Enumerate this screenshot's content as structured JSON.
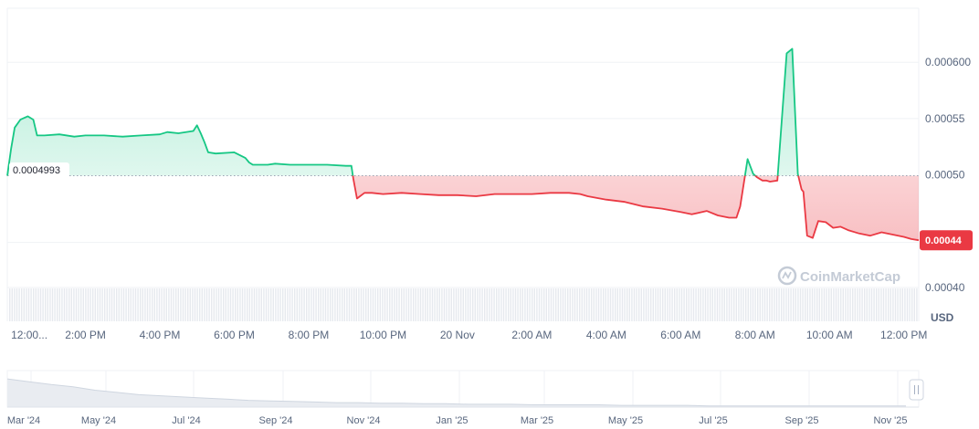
{
  "chart_data": {
    "type": "area",
    "unit_label": "USD",
    "baseline": 0.0004993,
    "baseline_label": "0.0004993",
    "current_label": "0.00044",
    "watermark": "CoinMarketCap",
    "ylim": [
      0.00037,
      0.000648
    ],
    "y_ticks": [
      {
        "value": 0.0006,
        "label": "0.000600"
      },
      {
        "value": 0.00055,
        "label": "0.00055"
      },
      {
        "value": 0.0005,
        "label": "0.00050"
      },
      {
        "value": 0.00044,
        "label": ""
      },
      {
        "value": 0.0004,
        "label": "0.00040"
      }
    ],
    "x_ticks": [
      {
        "t": 0,
        "label": "12:00..."
      },
      {
        "t": 2,
        "label": "2:00 PM"
      },
      {
        "t": 4,
        "label": "4:00 PM"
      },
      {
        "t": 6,
        "label": "6:00 PM"
      },
      {
        "t": 8,
        "label": "8:00 PM"
      },
      {
        "t": 10,
        "label": "10:00 PM"
      },
      {
        "t": 12,
        "label": "20 Nov"
      },
      {
        "t": 14,
        "label": "2:00 AM"
      },
      {
        "t": 16,
        "label": "4:00 AM"
      },
      {
        "t": 18,
        "label": "6:00 AM"
      },
      {
        "t": 20,
        "label": "8:00 AM"
      },
      {
        "t": 22,
        "label": "10:00 AM"
      },
      {
        "t": 24,
        "label": "12:00 PM"
      }
    ],
    "x_range_hours": [
      -0.1,
      24.4
    ],
    "series": [
      {
        "x": [
          -0.1,
          0.0,
          0.1,
          0.25,
          0.45,
          0.6,
          0.7,
          0.9,
          1.3,
          1.7,
          2.0,
          2.5,
          3.0,
          3.5,
          4.0,
          4.2,
          4.5,
          4.9,
          5.0,
          5.1,
          5.2,
          5.3,
          5.5,
          6.0,
          6.3,
          6.4,
          6.5,
          6.9,
          7.1,
          7.5,
          8.0,
          8.5,
          9.0,
          9.15,
          9.2,
          9.3,
          9.5,
          9.7,
          10.0,
          10.5,
          11.0,
          11.5,
          12.0,
          12.5,
          13.0,
          13.5,
          14.0,
          14.5,
          15.0,
          15.3,
          15.5,
          16.0,
          16.5,
          17.0,
          17.5,
          18.0,
          18.3,
          18.7,
          19.0,
          19.3,
          19.5,
          19.6,
          19.8,
          19.95,
          20.05,
          20.2,
          20.3,
          20.4,
          20.6,
          20.85,
          21.0,
          21.15,
          21.25,
          21.3,
          21.4,
          21.55,
          21.7,
          21.9,
          22.1,
          22.3,
          22.5,
          22.8,
          23.1,
          23.4,
          23.7,
          24.0,
          24.2,
          24.4
        ],
        "y": [
          0.0004993,
          0.000523,
          0.000542,
          0.000549,
          0.000552,
          0.000549,
          0.000535,
          0.000535,
          0.000536,
          0.000534,
          0.000535,
          0.000535,
          0.000534,
          0.000535,
          0.000536,
          0.000538,
          0.000537,
          0.000539,
          0.000544,
          0.000537,
          0.000529,
          0.00052,
          0.000519,
          0.00052,
          0.000515,
          0.000511,
          0.000509,
          0.000509,
          0.00051,
          0.000509,
          0.000509,
          0.000509,
          0.000508,
          0.000508,
          0.000497,
          0.000479,
          0.000484,
          0.000484,
          0.000483,
          0.000484,
          0.000483,
          0.000482,
          0.000482,
          0.000481,
          0.000483,
          0.000483,
          0.000483,
          0.000484,
          0.000484,
          0.000483,
          0.000481,
          0.000478,
          0.000476,
          0.000472,
          0.00047,
          0.000467,
          0.000465,
          0.000468,
          0.000464,
          0.000462,
          0.000462,
          0.000472,
          0.000514,
          0.000501,
          0.000498,
          0.000495,
          0.000495,
          0.000494,
          0.000495,
          0.000608,
          0.000612,
          0.000501,
          0.000487,
          0.000485,
          0.000446,
          0.000444,
          0.000459,
          0.000458,
          0.000453,
          0.000454,
          0.000451,
          0.000448,
          0.000446,
          0.000449,
          0.000447,
          0.000445,
          0.000443,
          0.000442
        ]
      }
    ],
    "colors": {
      "up": "#16c784",
      "down": "#ea3943",
      "grid": "#eff2f5",
      "text": "#58667e"
    }
  },
  "navigator": {
    "labels": [
      "Mar '24",
      "May '24",
      "Jul '24",
      "Sep '24",
      "Nov '24",
      "Jan '25",
      "Mar '25",
      "May '25",
      "Jul '25",
      "Sep '25",
      "Nov '25"
    ],
    "values": [
      0.0009,
      0.00085,
      0.0008,
      0.00076,
      0.0007,
      0.00066,
      0.00062,
      0.0006,
      0.00058,
      0.00056,
      0.00054,
      0.00052,
      0.00051,
      0.0005,
      0.00049,
      0.00048,
      0.00048,
      0.00047,
      0.00047,
      0.00046,
      0.00046,
      0.00045,
      0.00045,
      0.00045,
      0.00044,
      0.00044,
      0.00044,
      0.00044,
      0.00043,
      0.00043,
      0.00043,
      0.00043,
      0.00042,
      0.00042,
      0.00042,
      0.00042,
      0.00042,
      0.00042,
      0.00042,
      0.00042,
      0.00042,
      0.00042
    ],
    "range_min": 0.0004,
    "range_max": 0.00095
  }
}
